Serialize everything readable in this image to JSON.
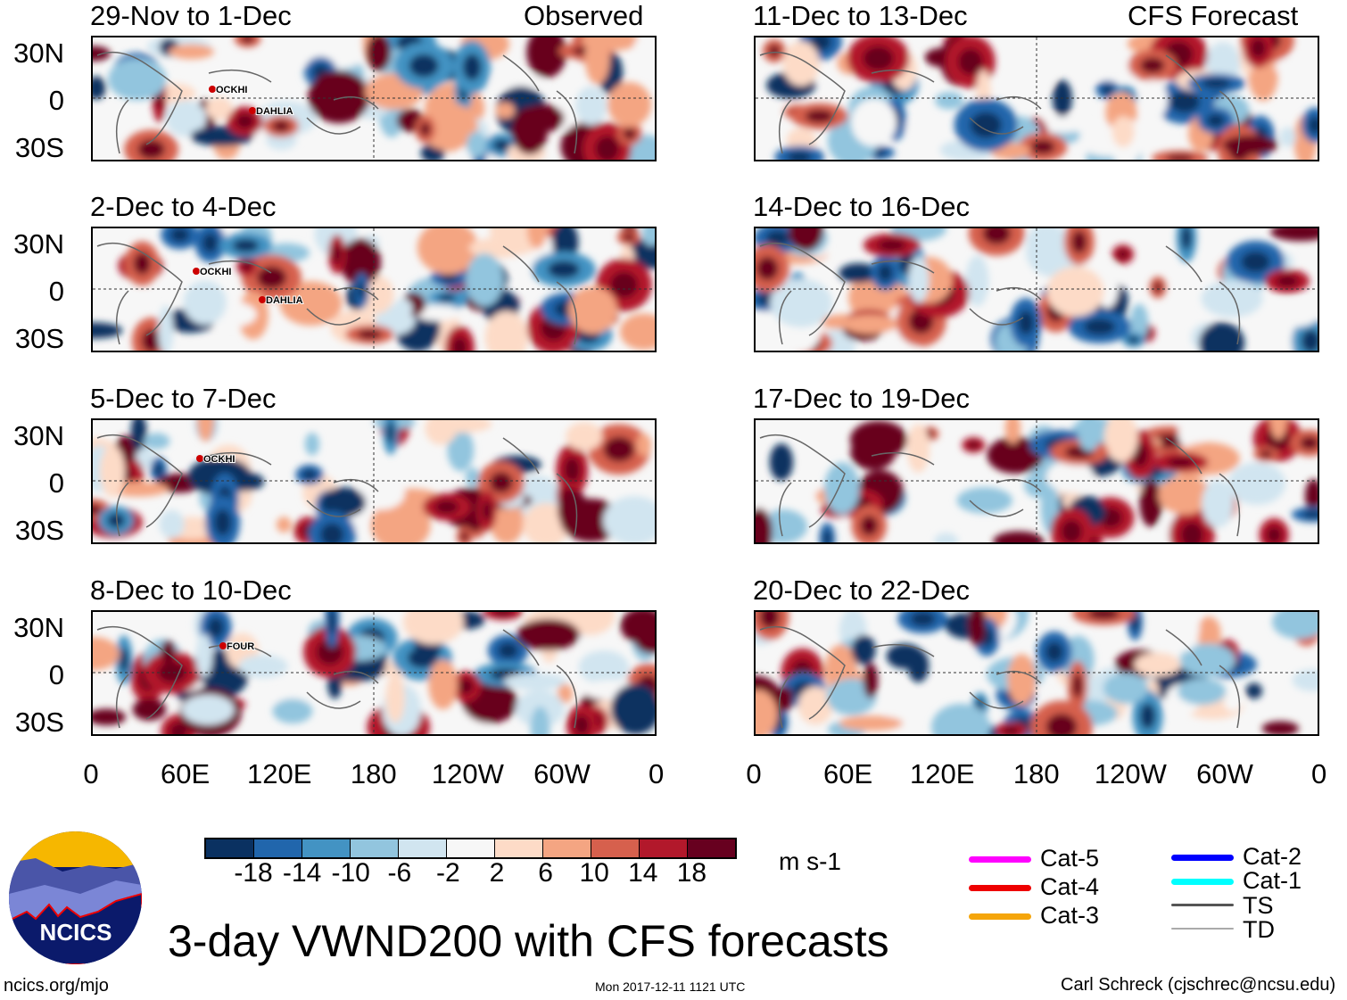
{
  "left_header": "Observed",
  "right_header": "CFS Forecast",
  "panels_left": [
    {
      "title": "29-Nov to 1-Dec",
      "storms": [
        {
          "name": "OCKHI"
        },
        {
          "name": "DAHLIA"
        }
      ]
    },
    {
      "title": "2-Dec to 4-Dec",
      "storms": [
        {
          "name": "OCKHI"
        },
        {
          "name": "DAHLIA"
        }
      ]
    },
    {
      "title": "5-Dec to 7-Dec",
      "storms": [
        {
          "name": "OCKHI"
        }
      ]
    },
    {
      "title": "8-Dec to 10-Dec",
      "storms": [
        {
          "name": "FOUR"
        }
      ]
    }
  ],
  "panels_right": [
    {
      "title": "11-Dec to 13-Dec"
    },
    {
      "title": "14-Dec to 16-Dec"
    },
    {
      "title": "17-Dec to 19-Dec"
    },
    {
      "title": "20-Dec to 22-Dec"
    }
  ],
  "lat_labels": [
    "30N",
    "0",
    "30S"
  ],
  "lon_labels": [
    "0",
    "60E",
    "120E",
    "180",
    "120W",
    "60W",
    "0"
  ],
  "colorbar": {
    "colors": [
      "#0a3161",
      "#2166ac",
      "#4393c3",
      "#92c5de",
      "#d1e5f0",
      "#f7f7f7",
      "#fddbc7",
      "#f4a582",
      "#d6604d",
      "#b2182b",
      "#67001f"
    ],
    "labels": [
      "-18",
      "-14",
      "-10",
      "-6",
      "-2",
      "2",
      "6",
      "10",
      "14",
      "18"
    ],
    "units": "m s-1"
  },
  "legend": [
    {
      "label": "Cat-5",
      "color": "#ff00ff"
    },
    {
      "label": "Cat-4",
      "color": "#ee0000"
    },
    {
      "label": "Cat-3",
      "color": "#f5a50a"
    },
    {
      "label": "Cat-2",
      "color": "#0000ff"
    },
    {
      "label": "Cat-1",
      "color": "#00ffff"
    },
    {
      "label": "TS",
      "color": "#555555"
    },
    {
      "label": "TD",
      "color": "#aaaaaa"
    }
  ],
  "title": "3-day VWND200 with CFS forecasts",
  "logo_text": "NCICS",
  "site": "ncics.org/mjo",
  "timestamp": "Mon 2017-12-11 1121 UTC",
  "credit": "Carl Schreck (cjschrec@ncsu.edu)"
}
